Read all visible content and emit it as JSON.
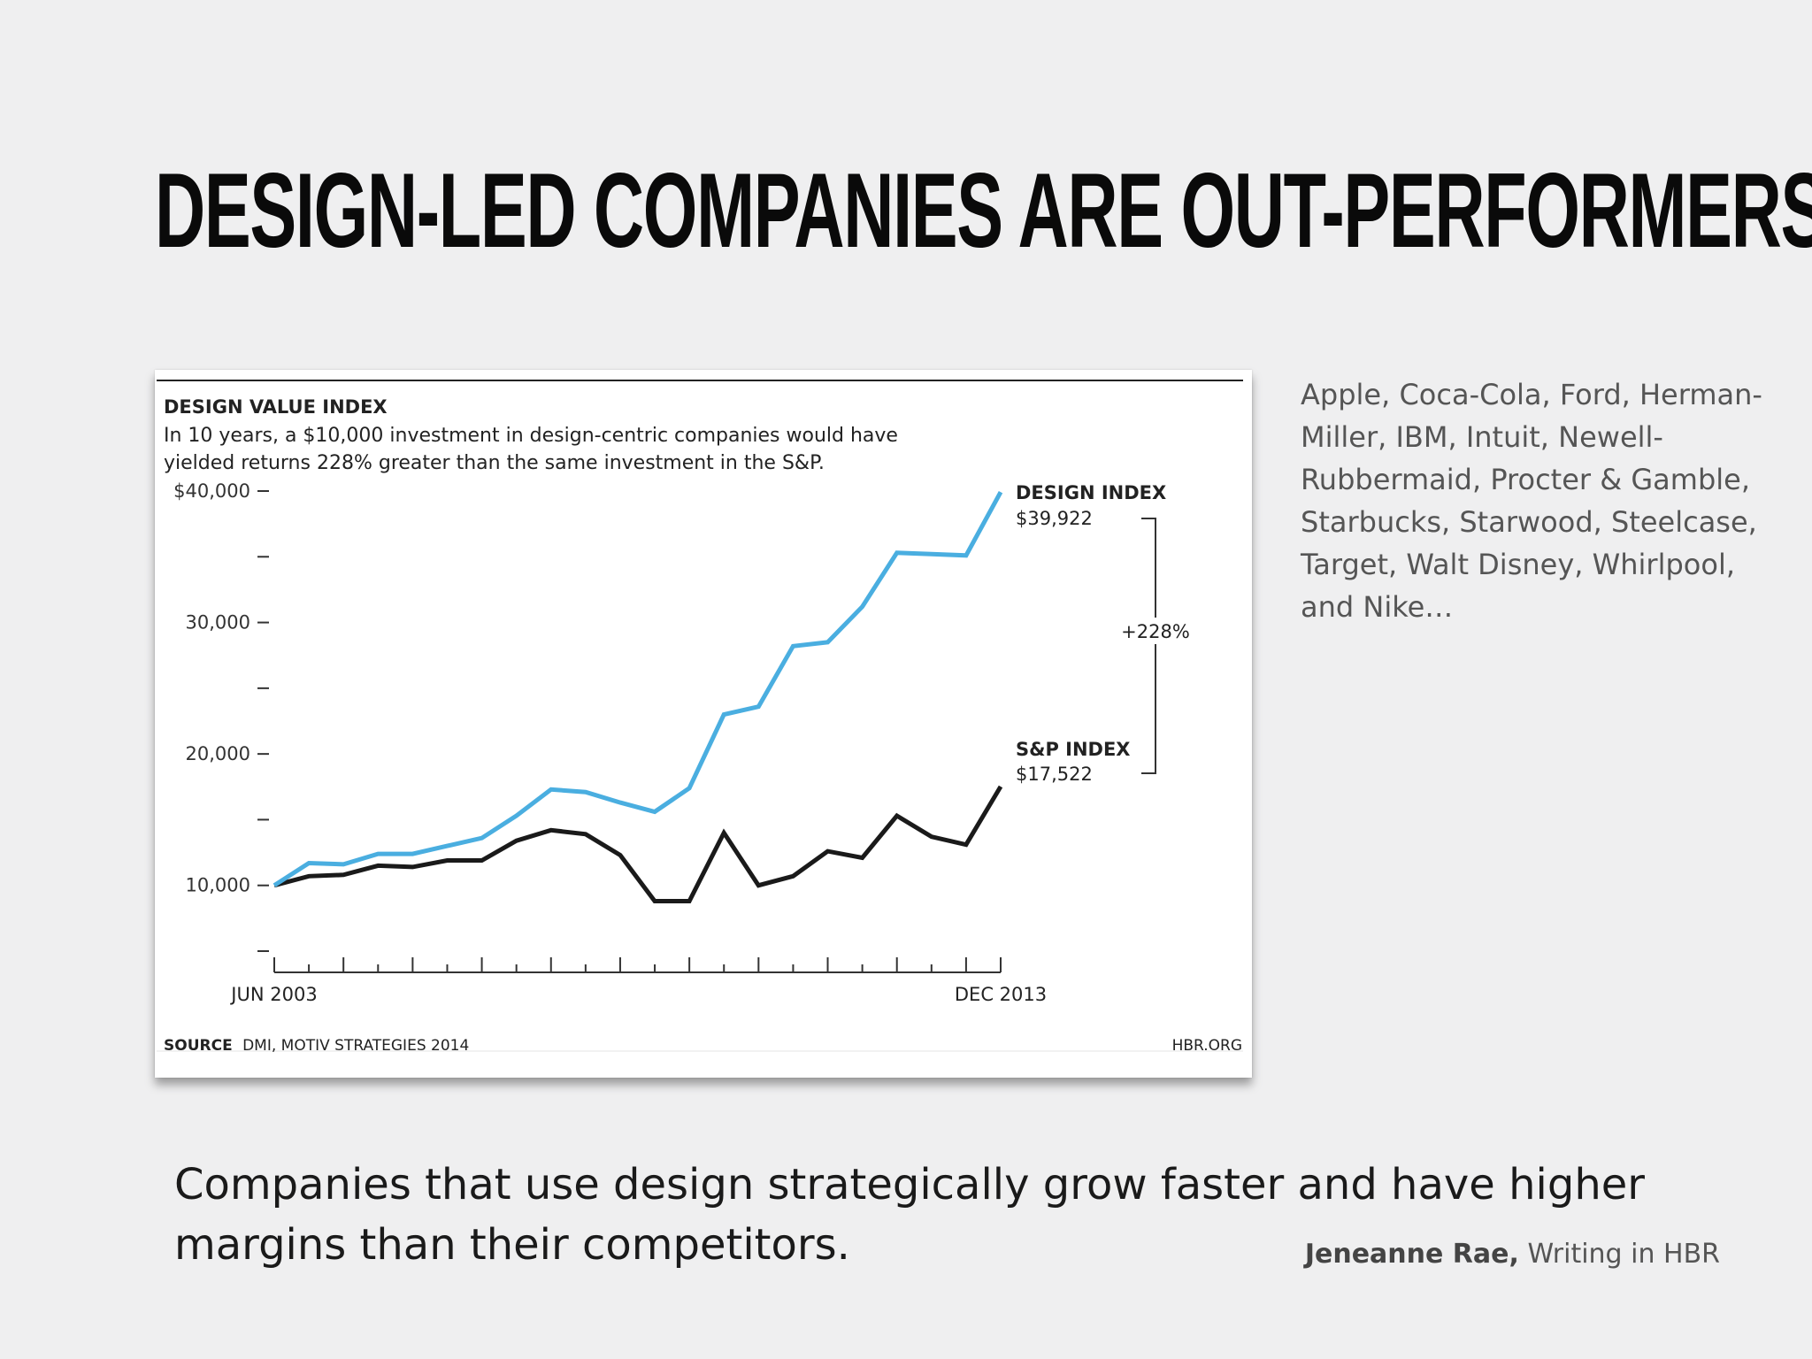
{
  "slide": {
    "title": "DESIGN-LED COMPANIES ARE OUT-PERFORMERS",
    "side_text": "Apple, Coca-Cola, Ford, Herman-Miller, IBM, Intuit, Newell-Rubbermaid, Procter & Gamble, Starbucks, Starwood, Steelcase, Target, Walt Disney, Whirlpool, and Nike…",
    "quote": "Companies that use design strategically grow faster and have higher margins than their competitors.",
    "attribution_author": "Jeneanne Rae,",
    "attribution_source": "Writing in HBR"
  },
  "chart_data": {
    "type": "line",
    "title": "DESIGN VALUE INDEX",
    "subtitle_line1": "In 10 years, a $10,000 investment in design-centric companies would have",
    "subtitle_line2": "yielded returns 228% greater than the same investment in the S&P.",
    "x_start_label": "JUN 2003",
    "x_end_label": "DEC 2013",
    "ylim": [
      5000,
      40000
    ],
    "y_ticks": [
      {
        "value": 40000,
        "label": "$40,000"
      },
      {
        "value": 35000,
        "label": ""
      },
      {
        "value": 30000,
        "label": "30,000"
      },
      {
        "value": 25000,
        "label": ""
      },
      {
        "value": 20000,
        "label": "20,000"
      },
      {
        "value": 15000,
        "label": ""
      },
      {
        "value": 10000,
        "label": "10,000"
      },
      {
        "value": 5000,
        "label": ""
      }
    ],
    "x_ticks_count": 22,
    "series": [
      {
        "name": "DESIGN INDEX",
        "end_label": "$39,922",
        "color": "#4aaee0",
        "values": [
          10000,
          11700,
          11600,
          12400,
          12400,
          13000,
          13600,
          15300,
          17300,
          17100,
          16300,
          15600,
          17400,
          23000,
          23600,
          28200,
          28500,
          31200,
          35300,
          35200,
          35100,
          39922
        ]
      },
      {
        "name": "S&P INDEX",
        "end_label": "$17,522",
        "color": "#1a1a1a",
        "values": [
          10000,
          10700,
          10800,
          11500,
          11400,
          11900,
          11900,
          13400,
          14200,
          13900,
          12300,
          8800,
          8800,
          14000,
          10000,
          10700,
          12600,
          12100,
          15300,
          13700,
          13100,
          17522
        ]
      }
    ],
    "difference_label": "+228%",
    "source_bold": "SOURCE",
    "source_text": "DMI, MOTIV STRATEGIES 2014",
    "site": "HBR.ORG"
  }
}
